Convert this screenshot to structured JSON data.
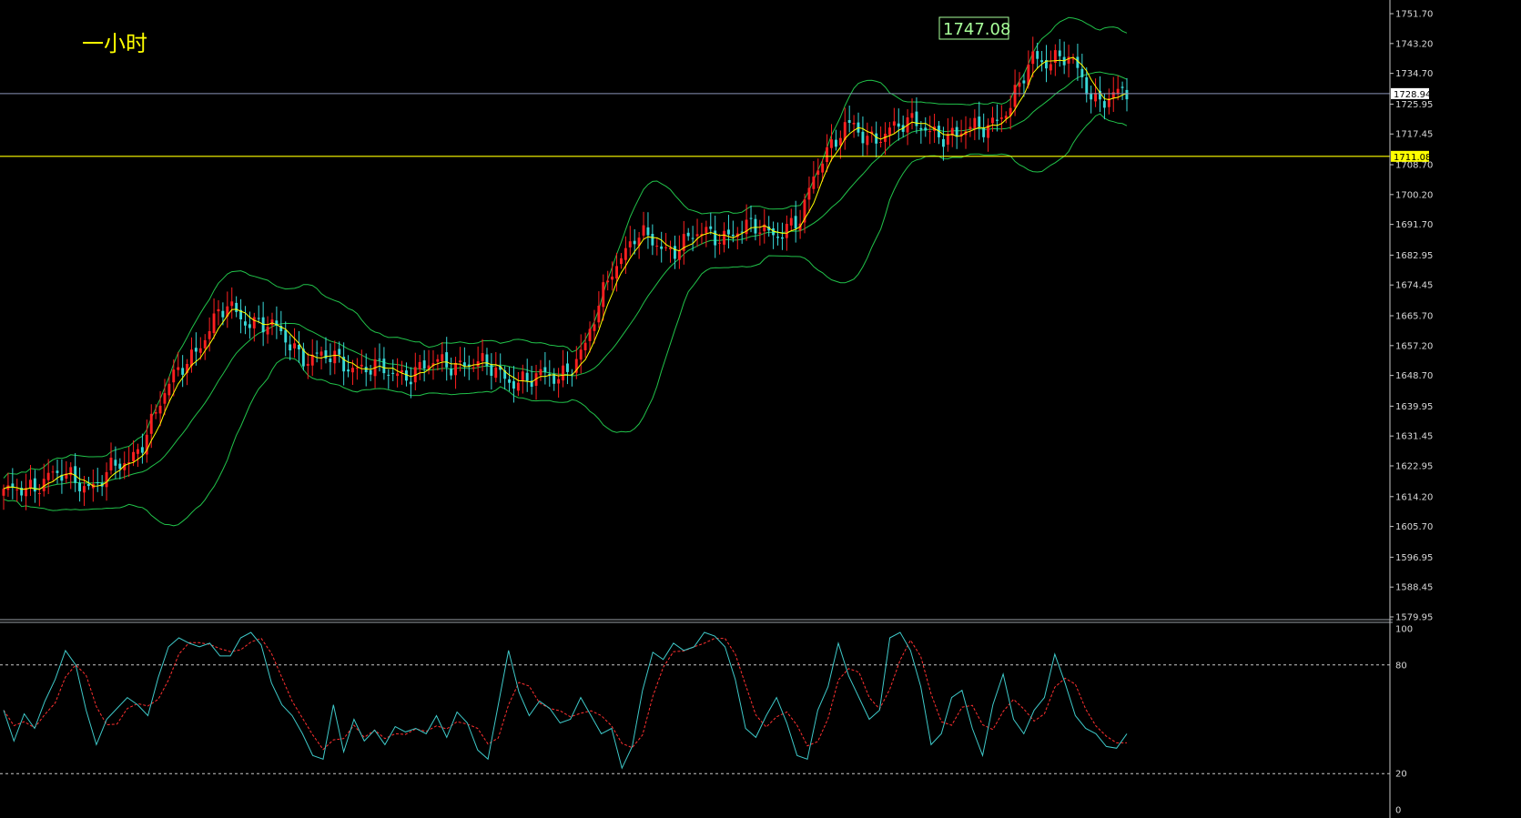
{
  "colors": {
    "background": "#000000",
    "bull": "#ff2020",
    "bear": "#38d8d8",
    "band": "#21c24a",
    "ma": "#ffff00",
    "hline_price": "#8a93b8",
    "hline_level": "#ffff00",
    "stoch_k": "#3ec9c9",
    "stoch_d": "#ff3030",
    "text": "#d8d8d8",
    "title": "#ffff00",
    "peak": "#a8ff9a"
  },
  "chart_data": [
    {
      "type": "candlestick",
      "title": "一小时",
      "ylim": [
        1579.95,
        1753.0
      ],
      "y_ticks": [
        1751.7,
        1743.2,
        1734.7,
        1725.95,
        1717.45,
        1708.7,
        1700.2,
        1691.7,
        1682.95,
        1674.45,
        1665.7,
        1657.2,
        1648.7,
        1639.95,
        1631.45,
        1622.95,
        1614.2,
        1605.7,
        1596.95,
        1588.45,
        1579.95
      ],
      "current_price": 1728.94,
      "level_line": 1711.08,
      "peak_annotation": {
        "label": "1747.08",
        "value": 1747.08
      },
      "candles": [],
      "bollinger": {
        "upper": [],
        "middle": [],
        "lower": []
      },
      "ma": []
    },
    {
      "type": "line",
      "indicator": "stochastic",
      "ylim": [
        0,
        100
      ],
      "y_ticks": [
        100,
        80,
        20,
        0
      ],
      "levels": [
        80,
        20
      ],
      "k": [
        55,
        38,
        53,
        45,
        60,
        72,
        88,
        80,
        55,
        36,
        50,
        56,
        62,
        58,
        52,
        73,
        90,
        95,
        92,
        90,
        92,
        85,
        85,
        95,
        98,
        91,
        70,
        58,
        52,
        42,
        30,
        28,
        58,
        32,
        50,
        38,
        44,
        36,
        46,
        43,
        45,
        42,
        52,
        40,
        54,
        48,
        33,
        28,
        58,
        88,
        65,
        52,
        60,
        56,
        48,
        50,
        62,
        52,
        42,
        45,
        23,
        35,
        66,
        87,
        83,
        92,
        88,
        90,
        98,
        96,
        90,
        72,
        45,
        40,
        52,
        62,
        48,
        30,
        28,
        55,
        68,
        92,
        74,
        62,
        50,
        55,
        95,
        98,
        88,
        68,
        36,
        42,
        62,
        66,
        45,
        30,
        58,
        75,
        50,
        42,
        55,
        62,
        86,
        70,
        52,
        45,
        42,
        35,
        34,
        42
      ]
    }
  ]
}
